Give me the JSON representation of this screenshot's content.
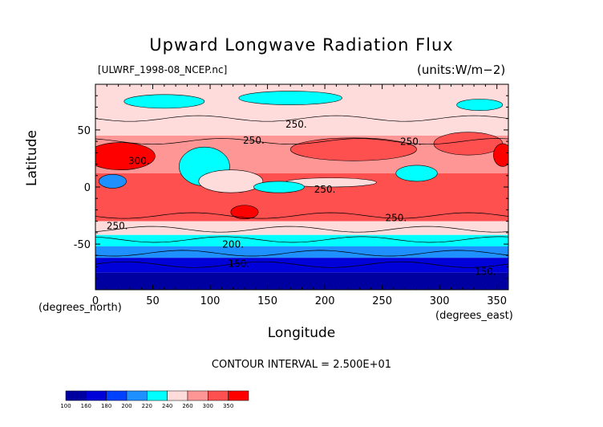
{
  "chart_data": {
    "type": "heatmap",
    "title": "Upward Longwave Radiation Flux",
    "file_label": "[ULWRF_1998-08_NCEP.nc]",
    "units_label": "(units:W/m^2)",
    "xlabel": "Longitude",
    "ylabel": "Latitude",
    "x_units": "(degrees_east)",
    "y_units": "(degrees_north)",
    "xlim": [
      0,
      360
    ],
    "ylim": [
      -90,
      90
    ],
    "x_ticks": [
      0,
      50,
      100,
      150,
      200,
      250,
      300,
      350
    ],
    "y_ticks": [
      -50,
      0,
      50
    ],
    "contour_interval_text": "CONTOUR INTERVAL = 2.500E+01",
    "contour_labels": [
      {
        "text": "250.",
        "x": 175,
        "y": 52
      },
      {
        "text": "250.",
        "x": 138,
        "y": 38
      },
      {
        "text": "250.",
        "x": 275,
        "y": 37
      },
      {
        "text": "300.",
        "x": 38,
        "y": 20
      },
      {
        "text": "250.",
        "x": 200,
        "y": -5
      },
      {
        "text": "250.",
        "x": 262,
        "y": -30
      },
      {
        "text": "250.",
        "x": 19,
        "y": -37
      },
      {
        "text": "200.",
        "x": 120,
        "y": -53
      },
      {
        "text": "150.",
        "x": 125,
        "y": -70
      },
      {
        "text": "150.",
        "x": 340,
        "y": -77
      }
    ],
    "colorbar": {
      "levels": [
        100,
        160,
        180,
        200,
        220,
        240,
        260,
        300,
        350
      ],
      "colors": [
        "#0000a0",
        "#0000d8",
        "#0040ff",
        "#1e90ff",
        "#00ffff",
        "#ffdcdc",
        "#ff9696",
        "#ff5050",
        "#ff0000"
      ]
    },
    "zonal_bands": [
      {
        "lat": [
          70,
          90
        ],
        "level": "#ffdcdc"
      },
      {
        "lat": [
          45,
          70
        ],
        "level": "#ffdcdc"
      },
      {
        "lat": [
          12,
          45
        ],
        "level": "#ff9696"
      },
      {
        "lat": [
          -30,
          12
        ],
        "level": "#ff5050"
      },
      {
        "lat": [
          -42,
          -30
        ],
        "level": "#ffdcdc"
      },
      {
        "lat": [
          -52,
          -42
        ],
        "level": "#00ffff"
      },
      {
        "lat": [
          -62,
          -52
        ],
        "level": "#1e90ff"
      },
      {
        "lat": [
          -75,
          -62
        ],
        "level": "#0000d8"
      },
      {
        "lat": [
          -90,
          -75
        ],
        "level": "#0000a0"
      }
    ],
    "features": [
      {
        "name": "arctic-cold",
        "kind": "ellipse",
        "center": [
          60,
          75
        ],
        "radius": [
          35,
          6
        ],
        "level": "#00ffff"
      },
      {
        "name": "arctic-cold-2",
        "kind": "ellipse",
        "center": [
          170,
          78
        ],
        "radius": [
          45,
          6
        ],
        "level": "#00ffff"
      },
      {
        "name": "arctic-cold-3",
        "kind": "ellipse",
        "center": [
          335,
          72
        ],
        "radius": [
          20,
          5
        ],
        "level": "#00ffff"
      },
      {
        "name": "sahara-hot",
        "kind": "ellipse",
        "center": [
          22,
          27
        ],
        "radius": [
          30,
          12
        ],
        "level": "#ff0000"
      },
      {
        "name": "north-pacific-warm",
        "kind": "ellipse",
        "center": [
          225,
          33
        ],
        "radius": [
          55,
          10
        ],
        "level": "#ff5050"
      },
      {
        "name": "north-atlantic-warm",
        "kind": "ellipse",
        "center": [
          325,
          38
        ],
        "radius": [
          30,
          10
        ],
        "level": "#ff5050"
      },
      {
        "name": "himalaya-cold",
        "kind": "ellipse",
        "center": [
          95,
          18
        ],
        "radius": [
          22,
          17
        ],
        "level": "#00ffff"
      },
      {
        "name": "central-america-cold",
        "kind": "ellipse",
        "center": [
          280,
          12
        ],
        "radius": [
          18,
          7
        ],
        "level": "#00ffff"
      },
      {
        "name": "africa-cold",
        "kind": "ellipse",
        "center": [
          15,
          5
        ],
        "radius": [
          12,
          6
        ],
        "level": "#1e90ff"
      },
      {
        "name": "maritime-continent",
        "kind": "ellipse",
        "center": [
          118,
          5
        ],
        "radius": [
          28,
          10
        ],
        "level": "#ffdcdc"
      },
      {
        "name": "itcz-pacific",
        "kind": "ellipse",
        "center": [
          205,
          4
        ],
        "radius": [
          40,
          4
        ],
        "level": "#ffdcdc"
      },
      {
        "name": "indonesia-cold",
        "kind": "ellipse",
        "center": [
          160,
          0
        ],
        "radius": [
          22,
          5
        ],
        "level": "#00ffff"
      },
      {
        "name": "australia-hot",
        "kind": "ellipse",
        "center": [
          130,
          -22
        ],
        "radius": [
          12,
          6
        ],
        "level": "#ff0000"
      },
      {
        "name": "east-us-hot",
        "kind": "ellipse",
        "center": [
          355,
          28
        ],
        "radius": [
          8,
          10
        ],
        "level": "#ff0000"
      }
    ]
  }
}
